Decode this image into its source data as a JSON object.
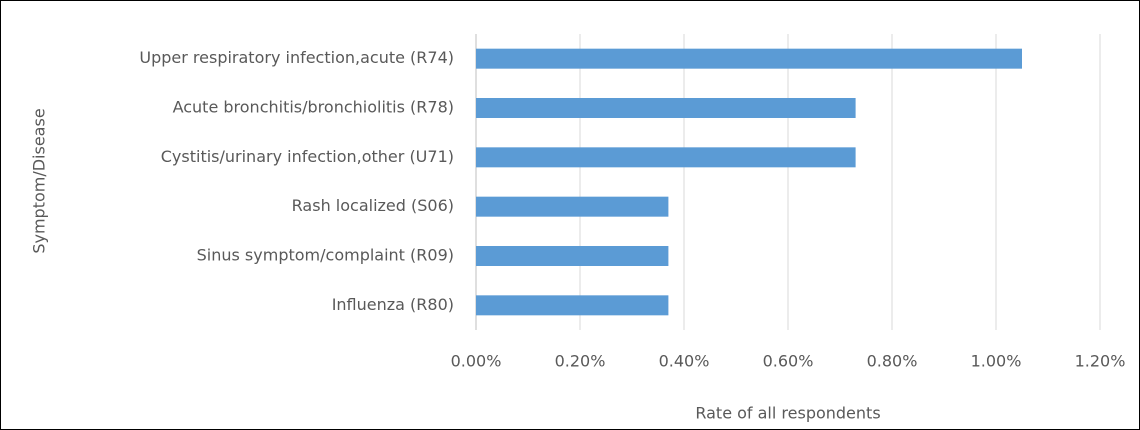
{
  "chart_data": {
    "type": "bar",
    "orientation": "horizontal",
    "categories": [
      "Upper respiratory infection,acute (R74)",
      "Acute bronchitis/bronchiolitis (R78)",
      "Cystitis/urinary infection,other (U71)",
      "Rash localized (S06)",
      "Sinus symptom/complaint (R09)",
      "Influenza (R80)"
    ],
    "values": [
      1.05,
      0.73,
      0.73,
      0.37,
      0.37,
      0.37
    ],
    "color": "#5b9bd5",
    "xlim": [
      0,
      1.2
    ],
    "xticks": [
      {
        "value": 0,
        "label": "0.00%"
      },
      {
        "value": 0.2,
        "label": "0.20%"
      },
      {
        "value": 0.4,
        "label": "0.40%"
      },
      {
        "value": 0.6,
        "label": "0.60%"
      },
      {
        "value": 0.8,
        "label": "0.80%"
      },
      {
        "value": 1.0,
        "label": "1.00%"
      },
      {
        "value": 1.2,
        "label": "1.20%"
      }
    ],
    "xlabel": "Rate of all respondents",
    "ylabel": "Symptom/Disease",
    "grid": true
  }
}
